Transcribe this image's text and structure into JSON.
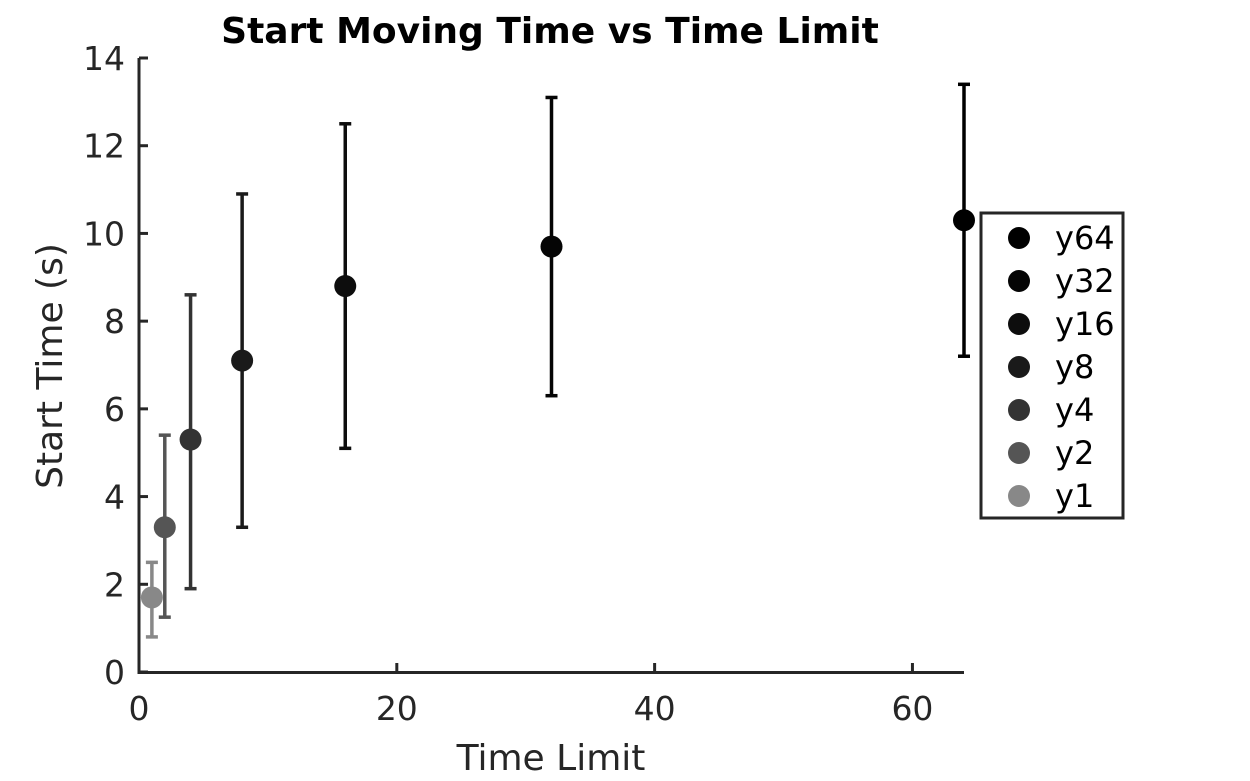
{
  "chart_data": {
    "type": "scatter",
    "title": "Start Moving Time vs Time Limit",
    "xlabel": "Time Limit",
    "ylabel": "Start Time (s)",
    "xlim": [
      0,
      64
    ],
    "ylim": [
      0,
      14
    ],
    "xticks": [
      0,
      20,
      40,
      60
    ],
    "yticks": [
      0,
      2,
      4,
      6,
      8,
      10,
      12,
      14
    ],
    "grid": false,
    "legend_position": "right",
    "series": [
      {
        "name": "y64",
        "x": 64,
        "y": 10.3,
        "err_low": 7.2,
        "err_high": 13.4,
        "color": "#000000"
      },
      {
        "name": "y32",
        "x": 32,
        "y": 9.7,
        "err_low": 6.3,
        "err_high": 13.1,
        "color": "#050505"
      },
      {
        "name": "y16",
        "x": 16,
        "y": 8.8,
        "err_low": 5.1,
        "err_high": 12.5,
        "color": "#0d0d0d"
      },
      {
        "name": "y8",
        "x": 8,
        "y": 7.1,
        "err_low": 3.3,
        "err_high": 10.9,
        "color": "#1a1a1a"
      },
      {
        "name": "y4",
        "x": 4,
        "y": 5.3,
        "err_low": 1.9,
        "err_high": 8.6,
        "color": "#333333"
      },
      {
        "name": "y2",
        "x": 2,
        "y": 3.3,
        "err_low": 1.25,
        "err_high": 5.4,
        "color": "#555555"
      },
      {
        "name": "y1",
        "x": 1,
        "y": 1.7,
        "err_low": 0.8,
        "err_high": 2.5,
        "color": "#888888"
      }
    ]
  }
}
